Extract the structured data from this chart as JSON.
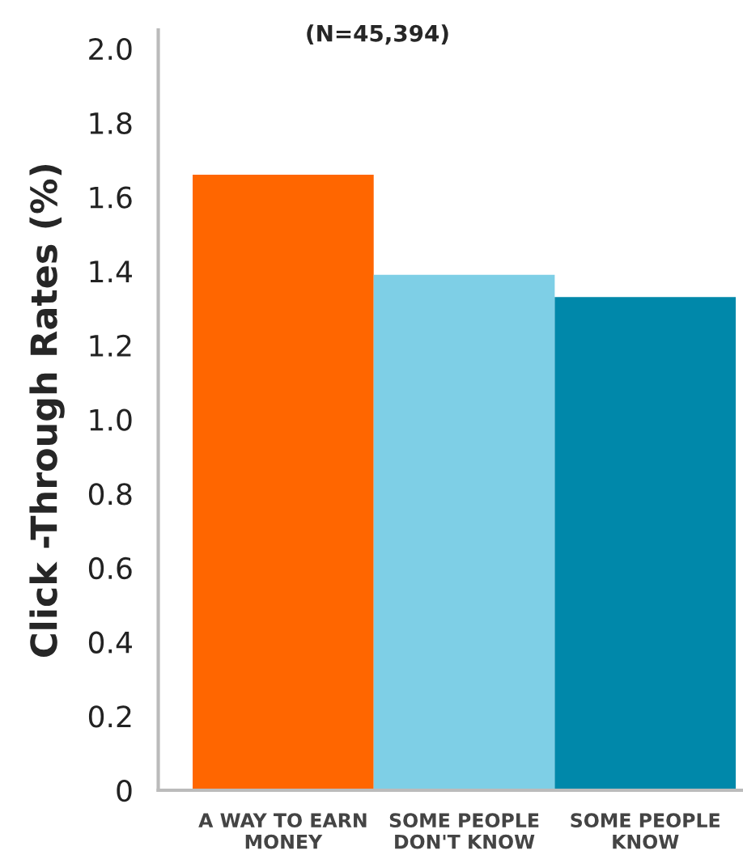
{
  "chart_data": {
    "type": "bar",
    "title": "(N=45,394)",
    "ylabel": "Click -Through Rates (%)",
    "categories": [
      "A WAY TO EARN\nMONEY",
      "SOME PEOPLE\nDON'T KNOW",
      "SOME PEOPLE\nKNOW"
    ],
    "values": [
      1.66,
      1.39,
      1.33
    ],
    "colors": [
      "#ff6600",
      "#7ecfe6",
      "#0088aa"
    ],
    "ylim": [
      0,
      2.05
    ],
    "yticks": [
      0,
      0.2,
      0.4,
      0.6,
      0.8,
      {
        "value": 1,
        "label": "1.0"
      },
      1.2,
      1.4,
      1.6,
      1.8,
      {
        "value": 2,
        "label": "2.0"
      }
    ],
    "grid": false
  }
}
